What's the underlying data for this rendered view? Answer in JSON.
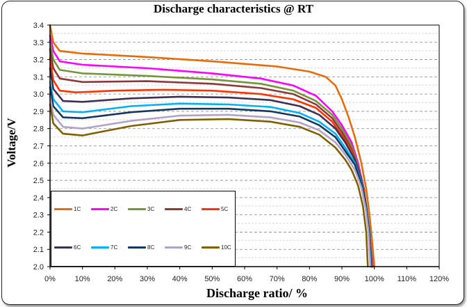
{
  "chart_data": {
    "type": "line",
    "title": "Discharge characteristics @ RT",
    "xlabel": "Discharge ratio/ %",
    "ylabel": "Voltage/V",
    "xlim": [
      0,
      120
    ],
    "ylim": [
      2.0,
      3.4
    ],
    "x_ticks": [
      "0%",
      "10%",
      "20%",
      "30%",
      "40%",
      "50%",
      "60%",
      "70%",
      "80%",
      "90%",
      "100%",
      "110%",
      "120%"
    ],
    "y_ticks": [
      "2.0",
      "2.1",
      "2.2",
      "2.3",
      "2.4",
      "2.5",
      "2.6",
      "2.7",
      "2.8",
      "2.9",
      "3.0",
      "3.1",
      "3.2",
      "3.3",
      "3.4"
    ],
    "grid": "horizontal dashed",
    "legend_position": "bottom-left",
    "series": [
      {
        "name": "1C",
        "color": "#E46C0A",
        "points": [
          [
            0,
            3.4
          ],
          [
            1,
            3.3
          ],
          [
            3,
            3.25
          ],
          [
            10,
            3.235
          ],
          [
            30,
            3.215
          ],
          [
            50,
            3.19
          ],
          [
            70,
            3.16
          ],
          [
            80,
            3.13
          ],
          [
            85,
            3.1
          ],
          [
            88,
            3.05
          ],
          [
            90,
            2.97
          ],
          [
            92,
            2.87
          ],
          [
            94,
            2.75
          ],
          [
            96,
            2.6
          ],
          [
            97.5,
            2.45
          ],
          [
            98.5,
            2.3
          ],
          [
            99.3,
            2.15
          ],
          [
            100,
            2.0
          ]
        ]
      },
      {
        "name": "2C",
        "color": "#FF00FF",
        "points": [
          [
            0,
            3.34
          ],
          [
            1,
            3.25
          ],
          [
            3,
            3.19
          ],
          [
            10,
            3.17
          ],
          [
            30,
            3.15
          ],
          [
            50,
            3.12
          ],
          [
            65,
            3.09
          ],
          [
            75,
            3.05
          ],
          [
            82,
            2.99
          ],
          [
            87,
            2.9
          ],
          [
            90,
            2.82
          ],
          [
            93,
            2.72
          ],
          [
            95,
            2.6
          ],
          [
            96.8,
            2.45
          ],
          [
            97.8,
            2.3
          ],
          [
            98.7,
            2.15
          ],
          [
            99.5,
            2.0
          ]
        ]
      },
      {
        "name": "3C",
        "color": "#77933C",
        "points": [
          [
            0,
            3.31
          ],
          [
            1,
            3.2
          ],
          [
            3,
            3.14
          ],
          [
            10,
            3.12
          ],
          [
            30,
            3.105
          ],
          [
            50,
            3.085
          ],
          [
            65,
            3.06
          ],
          [
            75,
            3.02
          ],
          [
            82,
            2.96
          ],
          [
            87,
            2.88
          ],
          [
            90,
            2.8
          ],
          [
            93,
            2.7
          ],
          [
            95,
            2.58
          ],
          [
            96.8,
            2.45
          ],
          [
            97.8,
            2.3
          ],
          [
            98.7,
            2.15
          ],
          [
            99.4,
            2.0
          ]
        ]
      },
      {
        "name": "4C",
        "color": "#8B3A3A",
        "points": [
          [
            0,
            3.26
          ],
          [
            1,
            3.15
          ],
          [
            3,
            3.09
          ],
          [
            10,
            3.07
          ],
          [
            30,
            3.075
          ],
          [
            50,
            3.06
          ],
          [
            65,
            3.035
          ],
          [
            75,
            3.0
          ],
          [
            82,
            2.94
          ],
          [
            87,
            2.86
          ],
          [
            90,
            2.78
          ],
          [
            93,
            2.68
          ],
          [
            95,
            2.57
          ],
          [
            96.8,
            2.45
          ],
          [
            97.8,
            2.3
          ],
          [
            98.7,
            2.15
          ],
          [
            99.3,
            2.0
          ]
        ]
      },
      {
        "name": "5C",
        "color": "#FF3300",
        "points": [
          [
            0,
            3.21
          ],
          [
            1,
            3.08
          ],
          [
            3,
            3.02
          ],
          [
            8,
            3.01
          ],
          [
            20,
            3.02
          ],
          [
            35,
            3.025
          ],
          [
            50,
            3.02
          ],
          [
            65,
            3.0
          ],
          [
            75,
            2.97
          ],
          [
            82,
            2.92
          ],
          [
            87,
            2.84
          ],
          [
            90,
            2.76
          ],
          [
            93,
            2.67
          ],
          [
            95,
            2.56
          ],
          [
            96.8,
            2.44
          ],
          [
            97.8,
            2.3
          ],
          [
            98.7,
            2.15
          ],
          [
            99.3,
            2.0
          ]
        ]
      },
      {
        "name": "6C",
        "color": "#403152",
        "points": [
          [
            0,
            3.15
          ],
          [
            1,
            3.03
          ],
          [
            4,
            2.96
          ],
          [
            10,
            2.955
          ],
          [
            25,
            2.975
          ],
          [
            40,
            2.985
          ],
          [
            55,
            2.98
          ],
          [
            68,
            2.965
          ],
          [
            77,
            2.93
          ],
          [
            83,
            2.88
          ],
          [
            88,
            2.8
          ],
          [
            91,
            2.72
          ],
          [
            94,
            2.62
          ],
          [
            96,
            2.5
          ],
          [
            97.5,
            2.35
          ],
          [
            98.5,
            2.2
          ],
          [
            99.2,
            2.0
          ]
        ]
      },
      {
        "name": "7C",
        "color": "#00B0F0",
        "points": [
          [
            0,
            3.07
          ],
          [
            1,
            2.97
          ],
          [
            4,
            2.9
          ],
          [
            10,
            2.895
          ],
          [
            25,
            2.93
          ],
          [
            40,
            2.945
          ],
          [
            55,
            2.94
          ],
          [
            68,
            2.925
          ],
          [
            77,
            2.89
          ],
          [
            83,
            2.84
          ],
          [
            88,
            2.77
          ],
          [
            91,
            2.69
          ],
          [
            94,
            2.6
          ],
          [
            96,
            2.49
          ],
          [
            97.5,
            2.35
          ],
          [
            98.5,
            2.2
          ],
          [
            99.1,
            2.0
          ]
        ]
      },
      {
        "name": "8C",
        "color": "#17375E",
        "points": [
          [
            0,
            3.04
          ],
          [
            1,
            2.93
          ],
          [
            4,
            2.865
          ],
          [
            10,
            2.86
          ],
          [
            25,
            2.895
          ],
          [
            40,
            2.915
          ],
          [
            55,
            2.915
          ],
          [
            68,
            2.9
          ],
          [
            77,
            2.87
          ],
          [
            83,
            2.82
          ],
          [
            88,
            2.75
          ],
          [
            91,
            2.67
          ],
          [
            94,
            2.59
          ],
          [
            96,
            2.48
          ],
          [
            97.5,
            2.35
          ],
          [
            98.4,
            2.2
          ],
          [
            99.0,
            2.0
          ]
        ]
      },
      {
        "name": "9C",
        "color": "#B3A2C7",
        "points": [
          [
            0,
            2.99
          ],
          [
            1,
            2.88
          ],
          [
            4,
            2.81
          ],
          [
            10,
            2.8
          ],
          [
            25,
            2.845
          ],
          [
            40,
            2.875
          ],
          [
            55,
            2.88
          ],
          [
            68,
            2.865
          ],
          [
            77,
            2.835
          ],
          [
            83,
            2.79
          ],
          [
            88,
            2.72
          ],
          [
            91,
            2.65
          ],
          [
            94,
            2.56
          ],
          [
            96,
            2.46
          ],
          [
            97.3,
            2.34
          ],
          [
            98.2,
            2.2
          ],
          [
            98.8,
            2.0
          ]
        ]
      },
      {
        "name": "10C",
        "color": "#7F6000",
        "points": [
          [
            0,
            2.94
          ],
          [
            1,
            2.83
          ],
          [
            4,
            2.77
          ],
          [
            10,
            2.76
          ],
          [
            25,
            2.815
          ],
          [
            40,
            2.85
          ],
          [
            55,
            2.855
          ],
          [
            68,
            2.84
          ],
          [
            77,
            2.81
          ],
          [
            83,
            2.765
          ],
          [
            88,
            2.69
          ],
          [
            91,
            2.62
          ],
          [
            93,
            2.56
          ],
          [
            95,
            2.47
          ],
          [
            96.5,
            2.35
          ],
          [
            97.5,
            2.2
          ],
          [
            98,
            2.0
          ]
        ]
      }
    ]
  }
}
